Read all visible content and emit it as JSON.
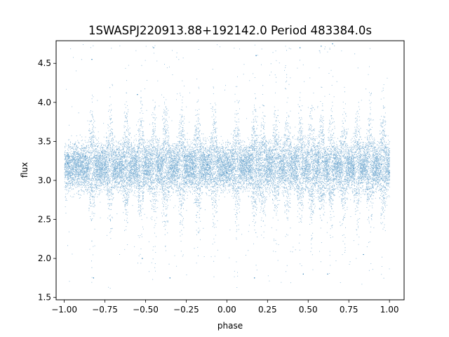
{
  "chart_data": {
    "type": "scatter",
    "title": "1SWASPJ220913.88+192142.0 Period 483384.0s",
    "xlabel": "phase",
    "ylabel": "flux",
    "xlim": [
      -1.05,
      1.09
    ],
    "ylim": [
      1.47,
      4.79
    ],
    "xticks": [
      -1.0,
      -0.75,
      -0.5,
      -0.25,
      0.0,
      0.25,
      0.5,
      0.75,
      1.0
    ],
    "xtick_labels": [
      "−1.00",
      "−0.75",
      "−0.50",
      "−0.25",
      "0.00",
      "0.25",
      "0.50",
      "0.75",
      "1.00"
    ],
    "yticks": [
      1.5,
      2.0,
      2.5,
      3.0,
      3.5,
      4.0,
      4.5
    ],
    "ytick_labels": [
      "1.5",
      "2.0",
      "2.5",
      "3.0",
      "3.5",
      "4.0",
      "4.5"
    ],
    "grid": false,
    "legend": "none",
    "point_color": "#1f77b4",
    "series": [
      {
        "phase_range": [
          -1.0,
          1.0
        ],
        "flux_center": 3.18,
        "flux_core_range": [
          2.9,
          3.45
        ],
        "flux_outlier_range": [
          1.62,
          4.75
        ],
        "approx_point_count": 40000,
        "sample_points": [
          [
            -0.98,
            3.22
          ],
          [
            -0.87,
            3.31
          ],
          [
            -0.83,
            4.55
          ],
          [
            -0.82,
            1.75
          ],
          [
            -0.74,
            3.1
          ],
          [
            -0.62,
            3.25
          ],
          [
            -0.55,
            4.1
          ],
          [
            -0.52,
            2.0
          ],
          [
            -0.45,
            4.7
          ],
          [
            -0.38,
            3.05
          ],
          [
            -0.35,
            1.75
          ],
          [
            -0.21,
            3.15
          ],
          [
            -0.12,
            3.2
          ],
          [
            0.0,
            3.1
          ],
          [
            0.1,
            3.25
          ],
          [
            0.18,
            4.6
          ],
          [
            0.17,
            1.75
          ],
          [
            0.28,
            3.3
          ],
          [
            0.45,
            4.7
          ],
          [
            0.47,
            1.8
          ],
          [
            0.58,
            4.72
          ],
          [
            0.62,
            1.8
          ],
          [
            0.65,
            4.75
          ],
          [
            0.78,
            3.15
          ],
          [
            0.84,
            2.05
          ],
          [
            0.95,
            3.2
          ],
          [
            1.0,
            3.1
          ]
        ]
      }
    ]
  }
}
